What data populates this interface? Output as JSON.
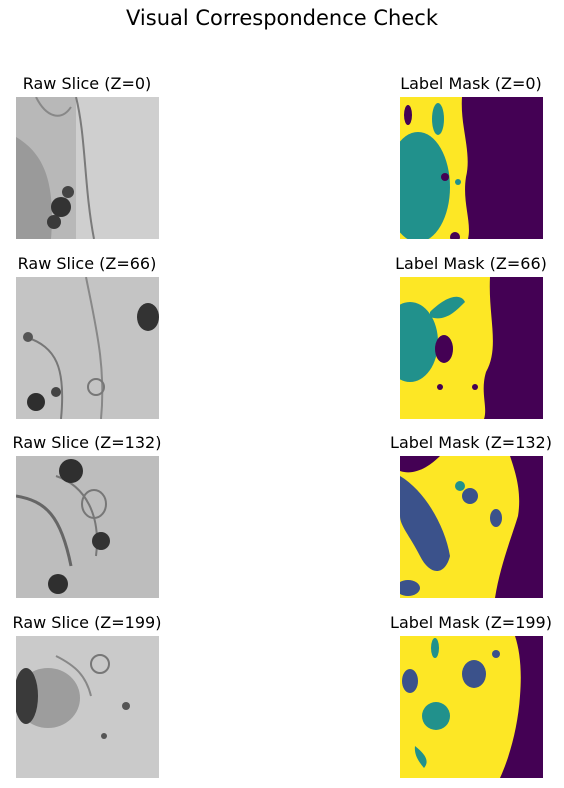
{
  "figure": {
    "title": "Visual Correspondence Check"
  },
  "colors": {
    "yellow": "#fde725",
    "teal": "#21918c",
    "purple": "#440154",
    "mid_purple": "#3b528b"
  },
  "rows": [
    {
      "raw_title": "Raw Slice (Z=0)",
      "mask_title": "Label Mask (Z=0)"
    },
    {
      "raw_title": "Raw Slice (Z=66)",
      "mask_title": "Label Mask (Z=66)"
    },
    {
      "raw_title": "Raw Slice (Z=132)",
      "mask_title": "Label Mask (Z=132)"
    },
    {
      "raw_title": "Raw Slice (Z=199)",
      "mask_title": "Label Mask (Z=199)"
    }
  ]
}
